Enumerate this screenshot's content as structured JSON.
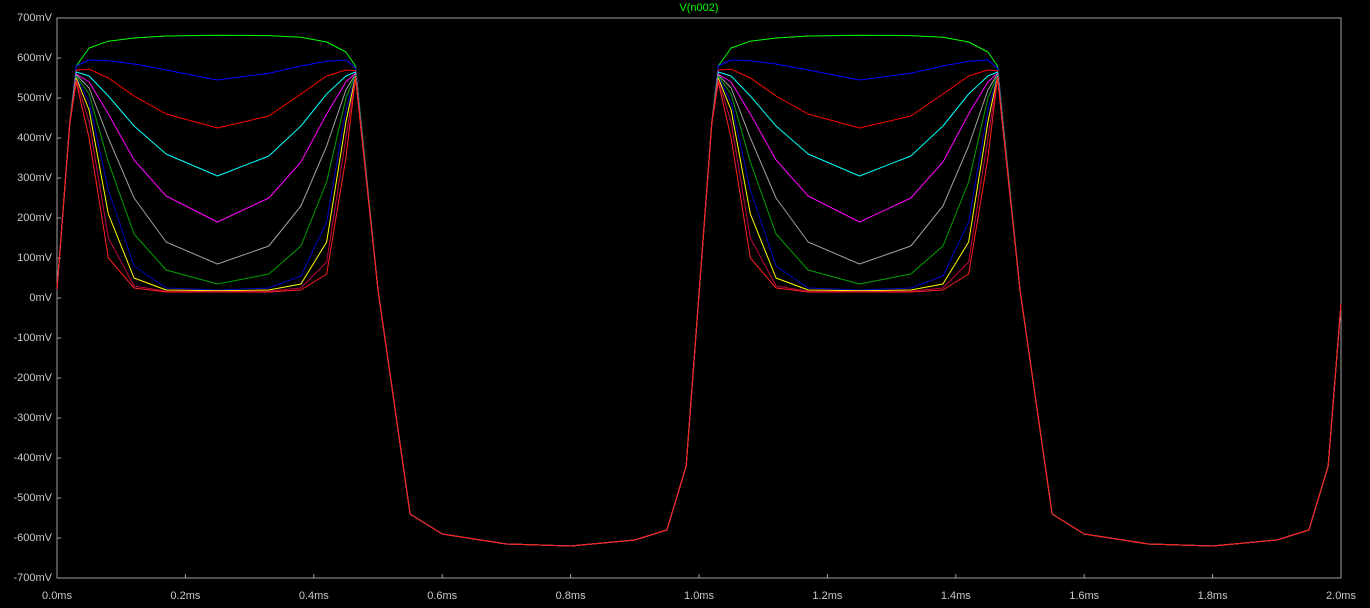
{
  "chart_data": {
    "type": "line",
    "title": "V(n002)",
    "title_color": "#00ff00",
    "grid": false,
    "x": [
      0,
      0.02,
      0.03,
      0.05,
      0.08,
      0.12,
      0.17,
      0.25,
      0.33,
      0.38,
      0.42,
      0.45,
      0.465,
      0.5,
      0.55,
      0.6,
      0.7,
      0.8,
      0.9,
      0.95,
      0.98,
      1.0,
      1.02,
      1.03,
      1.05,
      1.08,
      1.12,
      1.17,
      1.25,
      1.33,
      1.38,
      1.42,
      1.45,
      1.465,
      1.5,
      1.55,
      1.6,
      1.7,
      1.8,
      1.9,
      1.95,
      1.98,
      2.0
    ],
    "xlim": [
      0,
      2
    ],
    "xticks": [
      {
        "value": 0,
        "label": "0.0ms"
      },
      {
        "value": 0.2,
        "label": "0.2ms"
      },
      {
        "value": 0.4,
        "label": "0.4ms"
      },
      {
        "value": 0.6,
        "label": "0.6ms"
      },
      {
        "value": 0.8,
        "label": "0.8ms"
      },
      {
        "value": 1.0,
        "label": "1.0ms"
      },
      {
        "value": 1.2,
        "label": "1.2ms"
      },
      {
        "value": 1.4,
        "label": "1.4ms"
      },
      {
        "value": 1.6,
        "label": "1.6ms"
      },
      {
        "value": 1.8,
        "label": "1.8ms"
      },
      {
        "value": 2.0,
        "label": "2.0ms"
      }
    ],
    "ylim": [
      -700,
      700
    ],
    "yticks": [
      {
        "value": 700,
        "label": "700mV"
      },
      {
        "value": 600,
        "label": "600mV"
      },
      {
        "value": 500,
        "label": "500mV"
      },
      {
        "value": 400,
        "label": "400mV"
      },
      {
        "value": 300,
        "label": "300mV"
      },
      {
        "value": 200,
        "label": "200mV"
      },
      {
        "value": 100,
        "label": "100mV"
      },
      {
        "value": 0,
        "label": "0mV"
      },
      {
        "value": -100,
        "label": "-100mV"
      },
      {
        "value": -200,
        "label": "-200mV"
      },
      {
        "value": -300,
        "label": "-300mV"
      },
      {
        "value": -400,
        "label": "-400mV"
      },
      {
        "value": -500,
        "label": "-500mV"
      },
      {
        "value": -600,
        "label": "-600mV"
      },
      {
        "value": -700,
        "label": "-700mV"
      }
    ],
    "series": [
      {
        "color": "#00ff00",
        "values": [
          22,
          440,
          580,
          625,
          642,
          650,
          655,
          657,
          656,
          652,
          640,
          615,
          580,
          20,
          -540,
          -590,
          -615,
          -620,
          -605,
          -580,
          -420,
          10,
          440,
          580,
          625,
          642,
          650,
          655,
          657,
          656,
          652,
          640,
          615,
          580,
          20,
          -540,
          -590,
          -615,
          -620,
          -605,
          -580,
          -420,
          -15
        ]
      },
      {
        "color": "#0000ff",
        "values": [
          22,
          440,
          580,
          595,
          593,
          585,
          570,
          545,
          562,
          580,
          592,
          595,
          575,
          20,
          -540,
          -590,
          -615,
          -620,
          -605,
          -580,
          -420,
          10,
          440,
          580,
          595,
          593,
          585,
          570,
          545,
          562,
          580,
          592,
          595,
          575,
          20,
          -540,
          -590,
          -615,
          -620,
          -605,
          -580,
          -420,
          -15
        ]
      },
      {
        "color": "#ff0000",
        "values": [
          22,
          440,
          570,
          572,
          550,
          505,
          460,
          425,
          455,
          510,
          555,
          570,
          568,
          20,
          -540,
          -590,
          -615,
          -620,
          -605,
          -580,
          -420,
          10,
          440,
          570,
          572,
          550,
          505,
          460,
          425,
          455,
          510,
          555,
          570,
          568,
          20,
          -540,
          -590,
          -615,
          -620,
          -605,
          -580,
          -420,
          -15
        ]
      },
      {
        "color": "#00ffff",
        "values": [
          22,
          440,
          565,
          555,
          505,
          430,
          360,
          305,
          355,
          430,
          510,
          555,
          565,
          20,
          -540,
          -590,
          -615,
          -620,
          -605,
          -580,
          -420,
          10,
          440,
          565,
          555,
          505,
          430,
          360,
          305,
          355,
          430,
          510,
          555,
          565,
          20,
          -540,
          -590,
          -615,
          -620,
          -605,
          -580,
          -420,
          -15
        ]
      },
      {
        "color": "#ff00ff",
        "values": [
          22,
          440,
          560,
          540,
          460,
          345,
          255,
          190,
          250,
          340,
          460,
          540,
          562,
          20,
          -540,
          -590,
          -615,
          -620,
          -605,
          -580,
          -420,
          10,
          440,
          560,
          540,
          460,
          345,
          255,
          190,
          250,
          340,
          460,
          540,
          562,
          20,
          -540,
          -590,
          -615,
          -620,
          -605,
          -580,
          -420,
          -15
        ]
      },
      {
        "color": "#a0a0a0",
        "values": [
          22,
          440,
          558,
          525,
          400,
          250,
          140,
          85,
          130,
          230,
          380,
          520,
          560,
          20,
          -540,
          -590,
          -615,
          -620,
          -605,
          -580,
          -420,
          10,
          440,
          558,
          525,
          400,
          250,
          140,
          85,
          130,
          230,
          380,
          520,
          560,
          20,
          -540,
          -590,
          -615,
          -620,
          -605,
          -580,
          -420,
          -15
        ]
      },
      {
        "color": "#00a000",
        "values": [
          22,
          440,
          555,
          510,
          340,
          160,
          70,
          35,
          60,
          130,
          290,
          500,
          558,
          20,
          -540,
          -590,
          -615,
          -620,
          -605,
          -580,
          -420,
          10,
          440,
          555,
          510,
          340,
          160,
          70,
          35,
          60,
          130,
          290,
          500,
          558,
          20,
          -540,
          -590,
          -615,
          -620,
          -605,
          -580,
          -420,
          -15
        ]
      },
      {
        "color": "#0000c0",
        "values": [
          22,
          440,
          552,
          490,
          270,
          80,
          25,
          20,
          25,
          55,
          190,
          470,
          556,
          20,
          -540,
          -590,
          -615,
          -620,
          -605,
          -580,
          -420,
          10,
          440,
          552,
          490,
          270,
          80,
          25,
          20,
          25,
          55,
          190,
          470,
          556,
          20,
          -540,
          -590,
          -615,
          -620,
          -605,
          -580,
          -420,
          -15
        ]
      },
      {
        "color": "#ffff00",
        "values": [
          22,
          440,
          550,
          470,
          210,
          50,
          20,
          18,
          20,
          35,
          140,
          440,
          554,
          20,
          -540,
          -590,
          -615,
          -620,
          -605,
          -580,
          -420,
          10,
          440,
          550,
          470,
          210,
          50,
          20,
          18,
          20,
          35,
          140,
          440,
          554,
          20,
          -540,
          -590,
          -615,
          -620,
          -605,
          -580,
          -420,
          -15
        ]
      },
      {
        "color": "#c00040",
        "values": [
          22,
          440,
          545,
          440,
          150,
          30,
          17,
          16,
          17,
          25,
          90,
          400,
          552,
          20,
          -540,
          -590,
          -615,
          -620,
          -605,
          -580,
          -420,
          10,
          440,
          545,
          440,
          150,
          30,
          17,
          16,
          17,
          25,
          90,
          400,
          552,
          20,
          -540,
          -590,
          -615,
          -620,
          -605,
          -580,
          -420,
          -15
        ]
      },
      {
        "color": "#ff2020",
        "values": [
          22,
          435,
          540,
          400,
          100,
          25,
          15,
          15,
          15,
          20,
          60,
          350,
          550,
          20,
          -540,
          -590,
          -615,
          -620,
          -605,
          -580,
          -420,
          10,
          435,
          540,
          400,
          100,
          25,
          15,
          15,
          15,
          20,
          60,
          350,
          550,
          20,
          -540,
          -590,
          -615,
          -620,
          -605,
          -580,
          -420,
          -15
        ]
      }
    ]
  }
}
